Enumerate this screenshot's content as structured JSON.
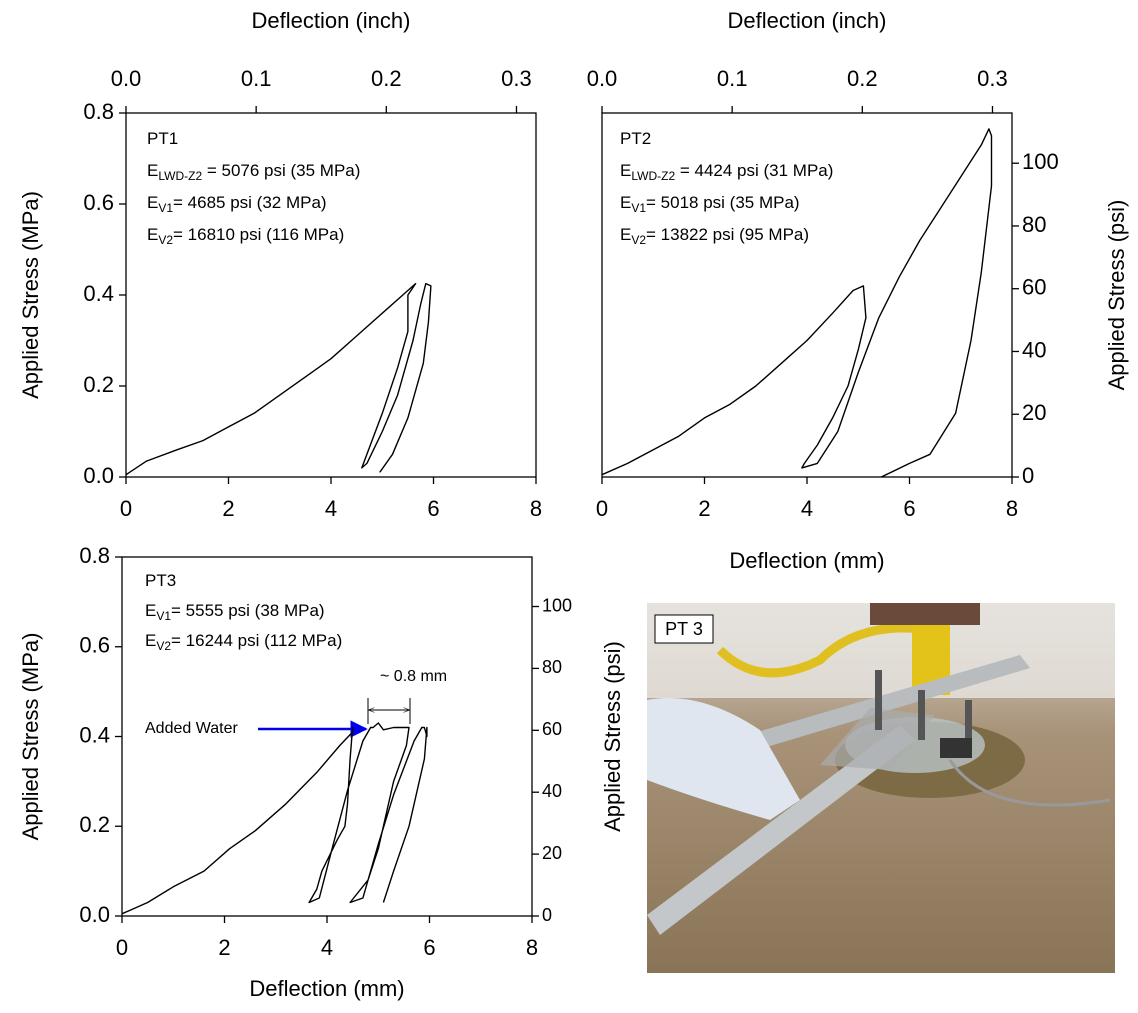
{
  "chart_data": [
    {
      "type": "line",
      "annotations": [
        {
          "text": "PT1"
        },
        {
          "main": "E",
          "sub": "LWD-Z2",
          "rest": " = 5076 psi (35 MPa)"
        },
        {
          "main": "E",
          "sub": "V1",
          "rest": "= 4685 psi (32 MPa)"
        },
        {
          "main": "E",
          "sub": "V2",
          "rest": "= 16810 psi (116 MPa)"
        }
      ],
      "x2label": "Deflection (inch)",
      "ylabel": "Applied Stress (MPa)",
      "xlim": [
        0,
        8
      ],
      "xticks": [
        0,
        2,
        4,
        6,
        8
      ],
      "x2lim": [
        0,
        0.315
      ],
      "x2ticks": [
        {
          "value": 0,
          "label": "0.0"
        },
        0.1,
        0.2,
        0.3
      ],
      "ylim": [
        0,
        0.8
      ],
      "yticks": [
        {
          "value": 0,
          "label": "0.0"
        },
        0.2,
        0.4,
        0.6,
        0.8
      ],
      "series": [
        {
          "color": "#000000",
          "x": [
            0,
            0.4,
            1,
            1.5,
            2,
            2.5,
            3,
            3.5,
            4,
            4.5,
            5,
            5.4,
            5.65,
            5.5,
            5.5,
            5.3,
            5.0,
            4.8,
            4.6,
            4.7,
            5.0,
            5.3,
            5.6,
            5.75,
            5.85,
            5.95,
            5.9,
            5.8,
            5.5,
            5.2,
            4.95
          ],
          "values": [
            0.005,
            0.035,
            0.06,
            0.08,
            0.11,
            0.14,
            0.18,
            0.22,
            0.26,
            0.31,
            0.36,
            0.4,
            0.425,
            0.4,
            0.32,
            0.24,
            0.14,
            0.08,
            0.02,
            0.03,
            0.1,
            0.18,
            0.3,
            0.38,
            0.425,
            0.42,
            0.34,
            0.25,
            0.13,
            0.05,
            0.01
          ]
        }
      ]
    },
    {
      "type": "line",
      "annotations": [
        {
          "text": "PT2"
        },
        {
          "main": "E",
          "sub": "LWD-Z2",
          "rest": " = 4424 psi (31 MPa)"
        },
        {
          "main": "E",
          "sub": "V1",
          "rest": "= 5018 psi (35 MPa)"
        },
        {
          "main": "E",
          "sub": "V2",
          "rest": "=  13822 psi (95 MPa)"
        }
      ],
      "x2label": "Deflection (inch)",
      "xlabel": "Deflection (mm)",
      "y2label": "Applied Stress (psi)",
      "xlim": [
        0,
        8
      ],
      "xticks": [
        0,
        2,
        4,
        6,
        8
      ],
      "x2lim": [
        0,
        0.315
      ],
      "x2ticks": [
        {
          "value": 0,
          "label": "0.0"
        },
        0.1,
        0.2,
        0.3
      ],
      "ylim": [
        0,
        0.8
      ],
      "y2lim": [
        0,
        116
      ],
      "y2ticks": [
        0,
        20,
        40,
        60,
        80,
        100
      ],
      "series": [
        {
          "color": "#000000",
          "x": [
            0,
            0.5,
            1,
            1.5,
            2,
            2.5,
            3,
            3.5,
            4,
            4.5,
            4.9,
            5.1,
            5.15,
            5.0,
            4.8,
            4.5,
            4.2,
            3.95,
            3.9,
            4.2,
            4.6,
            5.0,
            5.4,
            5.8,
            6.2,
            6.6,
            7.0,
            7.4,
            7.55,
            7.6,
            7.6,
            7.4,
            7.2,
            6.9,
            6.4,
            6.0,
            5.45
          ],
          "values": [
            0.005,
            0.03,
            0.06,
            0.09,
            0.13,
            0.16,
            0.2,
            0.25,
            0.3,
            0.36,
            0.41,
            0.42,
            0.35,
            0.28,
            0.2,
            0.13,
            0.07,
            0.03,
            0.02,
            0.03,
            0.1,
            0.23,
            0.35,
            0.44,
            0.52,
            0.59,
            0.66,
            0.73,
            0.765,
            0.75,
            0.64,
            0.45,
            0.3,
            0.14,
            0.05,
            0.03,
            0.0
          ]
        }
      ]
    },
    {
      "type": "line",
      "annotations": [
        {
          "text": "PT3"
        },
        {
          "main": "E",
          "sub": "V1",
          "rest": "= 5555 psi (38 MPa)"
        },
        {
          "main": "E",
          "sub": "V2",
          "rest": "= 16244 psi (112 MPa)"
        }
      ],
      "notes": [
        "Added Water",
        "~ 0.8 mm"
      ],
      "xlabel": "Deflection (mm)",
      "ylabel": "Applied Stress (MPa)",
      "y2label": "Applied Stress (psi)",
      "xlim": [
        0,
        8
      ],
      "xticks": [
        0,
        2,
        4,
        6,
        8
      ],
      "ylim": [
        0,
        0.8
      ],
      "yticks": [
        {
          "value": 0,
          "label": "0.0"
        },
        0.2,
        0.4,
        0.6,
        0.8
      ],
      "y2lim": [
        0,
        116
      ],
      "y2ticks": [
        0,
        20,
        40,
        60,
        80,
        100
      ],
      "series": [
        {
          "color": "#000000",
          "x": [
            0,
            0.5,
            1,
            1.6,
            2.1,
            2.6,
            3.2,
            3.8,
            4.25,
            4.5,
            4.5,
            4.45,
            4.4,
            4.35,
            4.2,
            3.9,
            3.8,
            3.65,
            3.85,
            4.1,
            4.4,
            4.7,
            4.85,
            4.9,
            5.0,
            5.1,
            5.3,
            5.6,
            5.55,
            5.3,
            5.0,
            4.8,
            4.45,
            4.7,
            5.0,
            5.3,
            5.7,
            5.85,
            5.9,
            5.95,
            5.95,
            5.9,
            5.6,
            5.3,
            5.1
          ],
          "values": [
            0.005,
            0.03,
            0.065,
            0.1,
            0.15,
            0.19,
            0.25,
            0.32,
            0.38,
            0.41,
            0.42,
            0.35,
            0.25,
            0.2,
            0.17,
            0.1,
            0.06,
            0.03,
            0.04,
            0.15,
            0.28,
            0.39,
            0.42,
            0.42,
            0.43,
            0.415,
            0.42,
            0.42,
            0.38,
            0.3,
            0.15,
            0.08,
            0.03,
            0.04,
            0.16,
            0.27,
            0.39,
            0.42,
            0.42,
            0.4,
            0.42,
            0.35,
            0.2,
            0.1,
            0.03
          ]
        }
      ]
    }
  ],
  "photo": {
    "label": "PT 3"
  }
}
